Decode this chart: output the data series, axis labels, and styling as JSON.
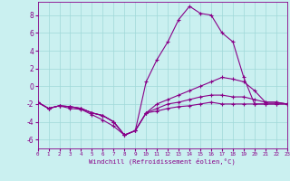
{
  "xlabel": "Windchill (Refroidissement éolien,°C)",
  "bg_color": "#caf0f0",
  "grid_color": "#a0d8d8",
  "line_color": "#880088",
  "xlim": [
    0,
    23
  ],
  "ylim": [
    -7,
    9.5
  ],
  "xticks": [
    0,
    1,
    2,
    3,
    4,
    5,
    6,
    7,
    8,
    9,
    10,
    11,
    12,
    13,
    14,
    15,
    16,
    17,
    18,
    19,
    20,
    21,
    22,
    23
  ],
  "yticks": [
    -6,
    -4,
    -2,
    0,
    2,
    4,
    6,
    8
  ],
  "series": [
    [
      -1.8,
      -2.5,
      -2.2,
      -2.5,
      -2.6,
      -3.2,
      -3.8,
      -4.5,
      -5.5,
      -5.0,
      -3.0,
      -2.8,
      -2.5,
      -2.3,
      -2.2,
      -2.0,
      -1.8,
      -2.0,
      -2.0,
      -2.0,
      -2.0,
      -2.0,
      -2.0,
      -2.0
    ],
    [
      -1.8,
      -2.5,
      -2.2,
      -2.3,
      -2.5,
      -3.0,
      -3.3,
      -4.0,
      -5.5,
      -5.0,
      -3.0,
      -2.5,
      -2.0,
      -1.8,
      -1.5,
      -1.2,
      -1.0,
      -1.0,
      -1.2,
      -1.2,
      -1.5,
      -1.8,
      -1.8,
      -2.0
    ],
    [
      -1.8,
      -2.5,
      -2.2,
      -2.3,
      -2.5,
      -3.0,
      -3.3,
      -4.0,
      -5.5,
      -5.0,
      -3.0,
      -2.0,
      -1.5,
      -1.0,
      -0.5,
      0.0,
      0.5,
      1.0,
      0.8,
      0.5,
      -0.5,
      -1.8,
      -1.8,
      -2.0
    ],
    [
      -1.8,
      -2.5,
      -2.2,
      -2.3,
      -2.5,
      -3.0,
      -3.3,
      -4.0,
      -5.5,
      -5.0,
      0.5,
      3.0,
      5.0,
      7.5,
      9.0,
      8.2,
      8.0,
      6.0,
      5.0,
      1.0,
      -2.0,
      -2.0,
      -2.0,
      -2.0
    ]
  ]
}
